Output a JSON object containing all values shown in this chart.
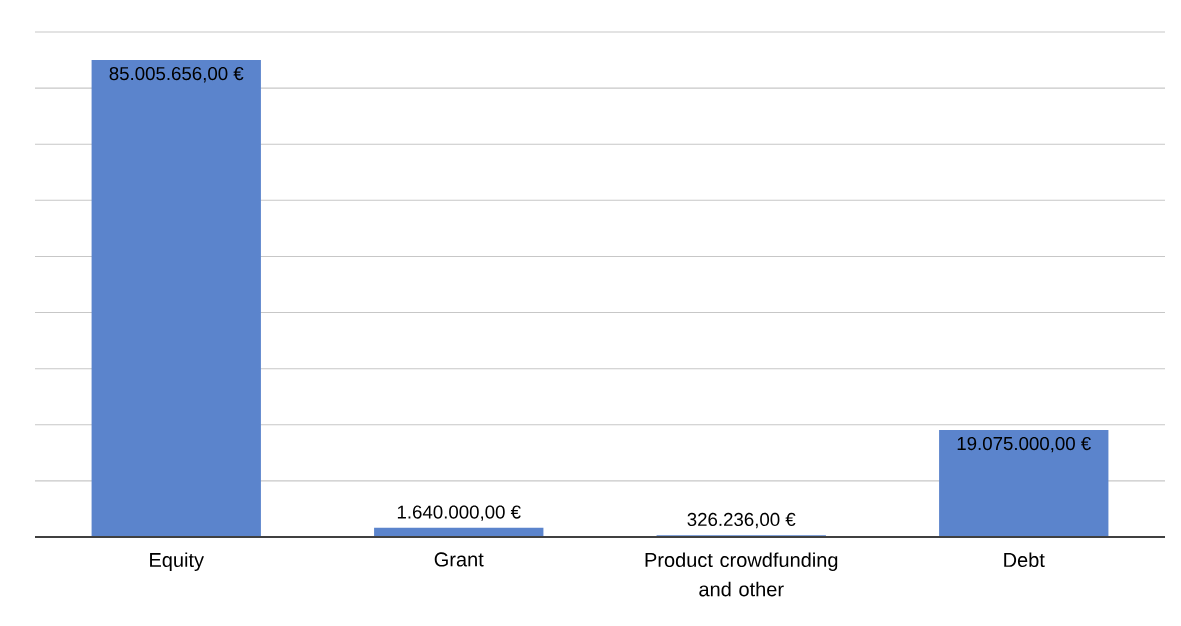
{
  "chart_data": {
    "type": "bar",
    "categories": [
      "Equity",
      "Grant",
      "Product crowdfunding and other",
      "Debt"
    ],
    "values": [
      85005656,
      1640000,
      326236,
      19075000
    ],
    "value_labels": [
      "85.005.656,00 €",
      "1.640.000,00 €",
      "326.236,00 €",
      "19.075.000,00 €"
    ],
    "color": "#5b84cc",
    "ylim": [
      0,
      90000000
    ],
    "yticks": [
      {
        "value": 0,
        "label": null
      },
      {
        "value": 10000000,
        "label": null
      },
      {
        "value": 20000000,
        "label": null
      },
      {
        "value": 30000000,
        "label": null
      },
      {
        "value": 40000000,
        "label": null
      },
      {
        "value": 50000000,
        "label": null
      },
      {
        "value": 60000000,
        "label": null
      },
      {
        "value": 70000000,
        "label": null
      },
      {
        "value": 80000000,
        "label": null
      },
      {
        "value": 90000000,
        "label": null
      }
    ],
    "tick_labels": "x",
    "grid": "y"
  }
}
